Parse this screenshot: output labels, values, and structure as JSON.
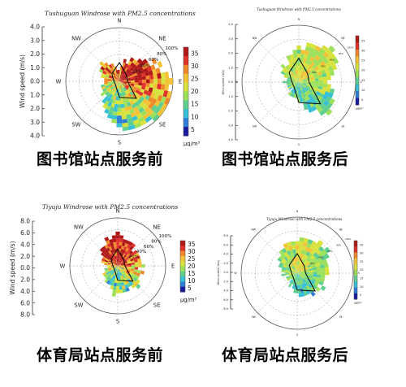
{
  "panels": [
    {
      "title": "Tushuguan Windrose with PM2.5 concentrations",
      "caption": "图书馆站点服务前",
      "ylabel": "Wind speed (m/s)",
      "yticks": [
        "4.0",
        "3.0",
        "2.0",
        "1.0",
        "0.0",
        "1.0",
        "2.0",
        "3.0",
        "4.0"
      ],
      "directions": [
        "N",
        "NE",
        "E",
        "SE",
        "S",
        "SW",
        "W",
        "NW"
      ],
      "ring_labels": [
        "20%",
        "40%",
        "60%",
        "80%",
        "100%"
      ],
      "colorbar_ticks": [
        "35",
        "30",
        "25",
        "20",
        "15",
        "10",
        "5"
      ],
      "unit": "μg/m³"
    },
    {
      "title": "Tushuguan Windrose with PM2.5 concentrations",
      "caption": "图书馆站点服务后",
      "ylabel": "Wind speed (m/s)",
      "yticks": [
        "4.0",
        "3.0",
        "2.0",
        "1.0",
        "0.0",
        "1.0",
        "2.0",
        "3.0",
        "4.0"
      ],
      "directions": [
        "N",
        "NE",
        "E",
        "SE",
        "S",
        "SW",
        "W",
        "NW"
      ],
      "ring_labels": [
        "20%",
        "40%",
        "60%",
        "80%",
        "100%"
      ],
      "colorbar_ticks": [
        "35",
        "30",
        "25",
        "20",
        "15",
        "10",
        "5"
      ],
      "unit": "μg/m³"
    },
    {
      "title": "Tiyuju Windrose with PM2.5 concentrations",
      "caption": "体育局站点服务前",
      "ylabel": "Wind speed (m/s)",
      "yticks": [
        "8.0",
        "6.0",
        "4.0",
        "2.0",
        "0.0",
        "2.0",
        "4.0",
        "6.0",
        "8.0"
      ],
      "directions": [
        "N",
        "NE",
        "E",
        "SE",
        "S",
        "SW",
        "W",
        "NW"
      ],
      "ring_labels": [
        "20%",
        "40%",
        "60%",
        "80%",
        "100%"
      ],
      "colorbar_ticks": [
        "35",
        "30",
        "25",
        "20",
        "15",
        "10",
        "5"
      ],
      "unit": "μg/m³"
    },
    {
      "title": "Tiyuju Windrose with PM2.5 concentrations",
      "caption": "体育局站点服务后",
      "ylabel": "Wind speed (m/s)",
      "yticks": [
        "8.0",
        "6.0",
        "4.0",
        "2.0",
        "0.0",
        "2.0",
        "4.0",
        "6.0",
        "8.0"
      ],
      "directions": [
        "N",
        "NE",
        "E",
        "SE",
        "S",
        "SW",
        "W",
        "NW"
      ],
      "ring_labels": [
        "20%",
        "40%",
        "60%",
        "80%",
        "100%"
      ],
      "colorbar_ticks": [
        "35",
        "30",
        "25",
        "20",
        "15",
        "10",
        "5"
      ],
      "unit": "μg/m³"
    }
  ],
  "colors": {
    "scale": [
      "#1a1aa0",
      "#2e7dd6",
      "#35c0d8",
      "#5fcf90",
      "#9de05a",
      "#d8e23c",
      "#f4c236",
      "#f08a2a",
      "#e0322a",
      "#b01818"
    ],
    "ring": "#9a9a9a",
    "axis": "#333333",
    "contour": "#000000"
  },
  "chart_data": [
    {
      "type": "heatmap",
      "title": "Tushuguan Windrose with PM2.5 concentrations",
      "ylabel": "Wind speed (m/s)",
      "ylim": [
        -4.0,
        4.0
      ],
      "colorbar": {
        "min": 5,
        "max": 35,
        "unit": "μg/m³"
      },
      "sectors": [
        "N",
        "NE",
        "E",
        "SE",
        "S",
        "SW",
        "W",
        "NW"
      ],
      "mean_pm25_by_sector": [
        22,
        30,
        26,
        18,
        14,
        15,
        17,
        24
      ],
      "frequency_contours_percent": [
        20,
        40,
        60,
        80,
        100
      ]
    },
    {
      "type": "heatmap",
      "title": "Tushuguan Windrose with PM2.5 concentrations",
      "ylabel": "Wind speed (m/s)",
      "ylim": [
        -4.0,
        4.0
      ],
      "colorbar": {
        "min": 5,
        "max": 35,
        "unit": "μg/m³"
      },
      "sectors": [
        "N",
        "NE",
        "E",
        "SE",
        "S",
        "SW",
        "W",
        "NW"
      ],
      "mean_pm25_by_sector": [
        18,
        20,
        17,
        14,
        13,
        14,
        15,
        17
      ],
      "frequency_contours_percent": [
        20,
        40,
        60,
        80,
        100
      ]
    },
    {
      "type": "heatmap",
      "title": "Tiyuju Windrose with PM2.5 concentrations",
      "ylabel": "Wind speed (m/s)",
      "ylim": [
        -8.0,
        8.0
      ],
      "colorbar": {
        "min": 5,
        "max": 35,
        "unit": "μg/m³"
      },
      "sectors": [
        "N",
        "NE",
        "E",
        "SE",
        "S",
        "SW",
        "W",
        "NW"
      ],
      "mean_pm25_by_sector": [
        30,
        27,
        22,
        16,
        12,
        14,
        18,
        28
      ],
      "frequency_contours_percent": [
        20,
        40,
        60,
        80,
        100
      ]
    },
    {
      "type": "heatmap",
      "title": "Tiyuju Windrose with PM2.5 concentrations",
      "ylabel": "Wind speed (m/s)",
      "ylim": [
        -8.0,
        8.0
      ],
      "colorbar": {
        "min": 5,
        "max": 35,
        "unit": "μg/m³"
      },
      "sectors": [
        "N",
        "NE",
        "E",
        "SE",
        "S",
        "SW",
        "W",
        "NW"
      ],
      "mean_pm25_by_sector": [
        19,
        18,
        16,
        13,
        12,
        13,
        15,
        17
      ],
      "frequency_contours_percent": [
        20,
        40,
        60,
        80,
        100
      ]
    }
  ]
}
